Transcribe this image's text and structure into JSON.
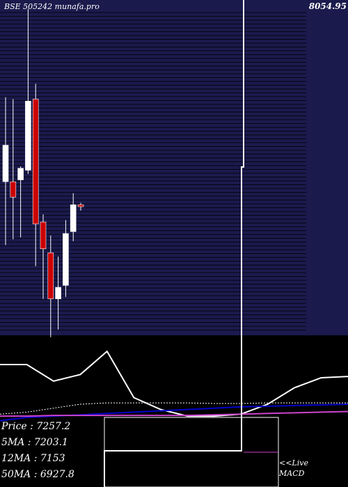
{
  "chart_data": {
    "type": "candlestick",
    "title": "BSE 505242 munafa.pro",
    "top_label": "8054.95",
    "y_range": [
      6350,
      8060
    ],
    "candles": [
      {
        "open": 7150,
        "high": 7590,
        "low": 6820,
        "close": 7340
      },
      {
        "open": 7150,
        "high": 7580,
        "low": 6850,
        "close": 7070
      },
      {
        "open": 7160,
        "high": 7230,
        "low": 6860,
        "close": 7220
      },
      {
        "open": 7210,
        "high": 8050,
        "low": 7190,
        "close": 7570
      },
      {
        "open": 7580,
        "high": 7660,
        "low": 6710,
        "close": 6930
      },
      {
        "open": 6940,
        "high": 6980,
        "low": 6540,
        "close": 6800
      },
      {
        "open": 6780,
        "high": 6870,
        "low": 6340,
        "close": 6540
      },
      {
        "open": 6540,
        "high": 6760,
        "low": 6380,
        "close": 6600
      },
      {
        "open": 6610,
        "high": 6950,
        "low": 6550,
        "close": 6880
      },
      {
        "open": 6890,
        "high": 7090,
        "low": 6840,
        "close": 7030
      },
      {
        "open": 7030,
        "high": 7040,
        "low": 7000,
        "close": 7020
      }
    ],
    "indicator_lines": [
      {
        "name": "",
        "color": "#ffffff",
        "points": [
          [
            0,
            0.8
          ],
          [
            1,
            0.8
          ],
          [
            2,
            0.55
          ],
          [
            3,
            0.65
          ],
          [
            4,
            1.0
          ],
          [
            5,
            0.3
          ],
          [
            6,
            0.12
          ],
          [
            7,
            0.02
          ],
          [
            8,
            0.02
          ],
          [
            9,
            0.05
          ],
          [
            10,
            0.2
          ],
          [
            11,
            0.45
          ],
          [
            12,
            0.6
          ],
          [
            13,
            0.62
          ]
        ]
      },
      {
        "name": "",
        "color": "#ffffff",
        "dotted": true,
        "points": [
          [
            0,
            0.05
          ],
          [
            1,
            0.08
          ],
          [
            2,
            0.14
          ],
          [
            3,
            0.2
          ],
          [
            4,
            0.22
          ],
          [
            5,
            0.22
          ],
          [
            6,
            0.22
          ],
          [
            7,
            0.22
          ],
          [
            8,
            0.21
          ],
          [
            9,
            0.21
          ],
          [
            10,
            0.22
          ],
          [
            11,
            0.22
          ],
          [
            12,
            0.22
          ],
          [
            13,
            0.22
          ]
        ]
      },
      {
        "name": "",
        "color": "#0000cc",
        "points": [
          [
            0,
            -0.05
          ],
          [
            1,
            0.0
          ],
          [
            2,
            0.02
          ],
          [
            3,
            0.04
          ],
          [
            4,
            0.06
          ],
          [
            5,
            0.08
          ],
          [
            6,
            0.1
          ],
          [
            7,
            0.12
          ],
          [
            8,
            0.14
          ],
          [
            9,
            0.16
          ],
          [
            10,
            0.17
          ],
          [
            11,
            0.18
          ],
          [
            12,
            0.19
          ],
          [
            13,
            0.2
          ]
        ]
      },
      {
        "name": "",
        "color": "#cc44cc",
        "points": [
          [
            0,
            0.02
          ],
          [
            1,
            0.02
          ],
          [
            2,
            0.03
          ],
          [
            3,
            0.03
          ],
          [
            4,
            0.03
          ],
          [
            5,
            0.03
          ],
          [
            6,
            0.03
          ],
          [
            7,
            0.03
          ],
          [
            8,
            0.04
          ],
          [
            9,
            0.05
          ],
          [
            10,
            0.06
          ],
          [
            11,
            0.07
          ],
          [
            12,
            0.08
          ],
          [
            13,
            0.09
          ]
        ]
      }
    ]
  },
  "info": {
    "price": "Price   : 7257.2",
    "ma5": "5MA : 7203.1",
    "ma12": "12MA : 7153",
    "ma50": "50MA : 6927.8"
  },
  "links": {
    "live": "<<Live",
    "macd": "MACD"
  },
  "colors": {
    "panel": "#1a1a4d",
    "bull": "#ffffff",
    "bear": "#cc0000",
    "grid": "#000000"
  }
}
